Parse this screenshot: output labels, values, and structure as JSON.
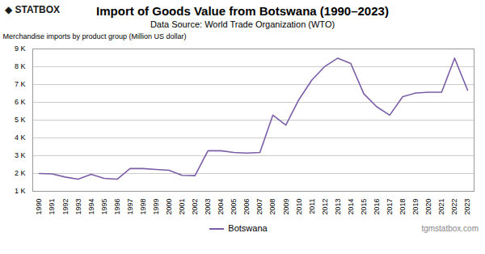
{
  "chart_data": {
    "type": "line",
    "title": "Import of Goods Value from Botswana (1990–2023)",
    "subtitle": "Data Source: World Trade Organization (WTO)",
    "y_label": "Merchandise imports by product group (Million US dollar)",
    "x": [
      1990,
      1991,
      1992,
      1993,
      1994,
      1995,
      1996,
      1997,
      1998,
      1999,
      2000,
      2001,
      2002,
      2003,
      2004,
      2005,
      2006,
      2007,
      2008,
      2009,
      2010,
      2011,
      2012,
      2013,
      2014,
      2015,
      2016,
      2017,
      2018,
      2019,
      2020,
      2021,
      2022,
      2023
    ],
    "series": [
      {
        "name": "Botswana",
        "color": "#7B5EA7",
        "values": [
          2000,
          1980,
          1800,
          1680,
          1950,
          1730,
          1680,
          2280,
          2280,
          2230,
          2180,
          1900,
          1880,
          3280,
          3280,
          3180,
          3150,
          3180,
          5280,
          4720,
          6150,
          7250,
          8020,
          8480,
          8180,
          6480,
          5750,
          5280,
          6320,
          6520,
          6570,
          6570,
          8480,
          6680
        ]
      }
    ],
    "xlim": [
      1989.5,
      2023.5
    ],
    "xticks": [
      1990,
      1991,
      1992,
      1993,
      1994,
      1995,
      1996,
      1997,
      1998,
      1999,
      2000,
      2001,
      2002,
      2003,
      2004,
      2005,
      2006,
      2007,
      2008,
      2009,
      2010,
      2011,
      2012,
      2013,
      2014,
      2015,
      2016,
      2017,
      2018,
      2019,
      2020,
      2021,
      2022,
      2023
    ],
    "ylim": [
      1000,
      9000
    ],
    "yticks": [
      {
        "value": 1000,
        "label": "1 K"
      },
      {
        "value": 2000,
        "label": "2 K"
      },
      {
        "value": 3000,
        "label": "3 K"
      },
      {
        "value": 4000,
        "label": "4 K"
      },
      {
        "value": 5000,
        "label": "5 K"
      },
      {
        "value": 6000,
        "label": "6 K"
      },
      {
        "value": 7000,
        "label": "7 K"
      },
      {
        "value": 8000,
        "label": "8 K"
      },
      {
        "value": 9000,
        "label": "9 K"
      }
    ],
    "grid": "y",
    "legend": "bottom",
    "annotations": [
      "◆ STATBOX",
      "tgmstatbox.com"
    ]
  }
}
